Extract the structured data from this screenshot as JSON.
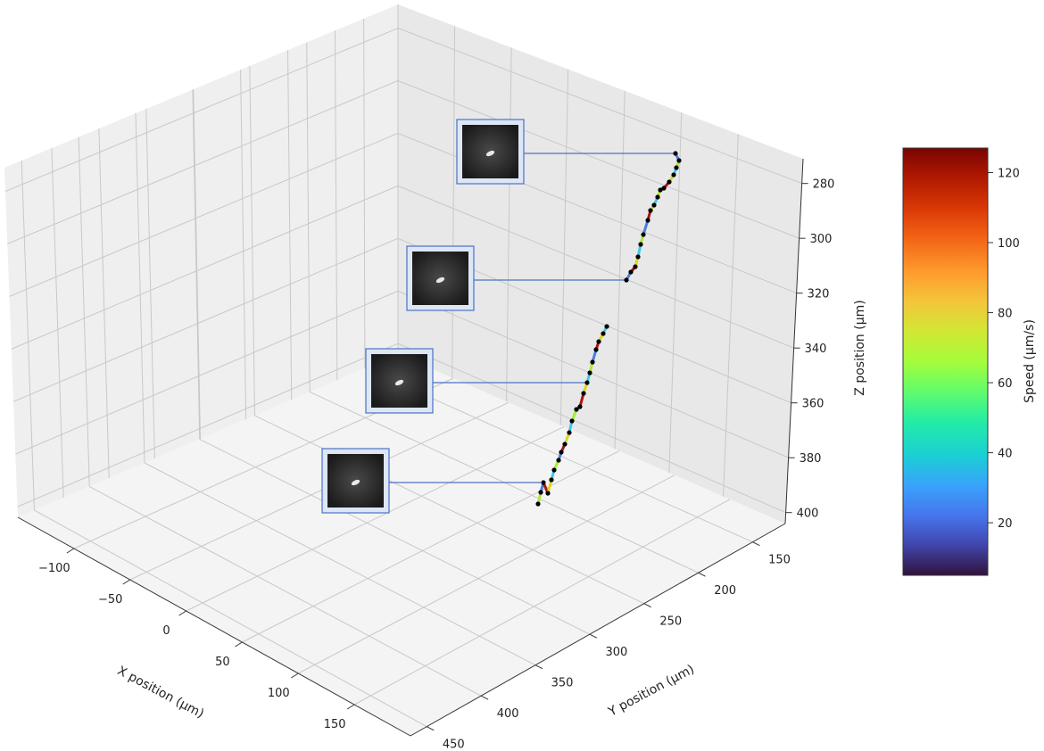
{
  "chart_data": {
    "type": "scatter",
    "projection": "3d",
    "xlabel": "X position (µm)",
    "ylabel": "Y position (µm)",
    "zlabel": "Z position (µm)",
    "xticks": [
      -100,
      -50,
      0,
      50,
      100,
      150
    ],
    "yticks": [
      150,
      200,
      250,
      300,
      350,
      400,
      450
    ],
    "zticks": [
      280,
      300,
      320,
      340,
      360,
      380,
      400
    ],
    "z_axis_inverted": true,
    "grid": true,
    "colorbar": {
      "label": "Speed (µm/s)",
      "ticks": [
        20,
        40,
        60,
        80,
        100,
        120
      ],
      "range": [
        5,
        127
      ],
      "colormap": "turbo"
    },
    "trajectory": {
      "point_color": "#000000",
      "segment_colors": [
        "#a8ec2e",
        "#4a7ee0",
        "#b01010",
        "#d8d820",
        "#3cc8e8"
      ]
    },
    "inset_images": {
      "count": 4,
      "description_free": true,
      "border_color": "#4b72c6",
      "fill_color": "#dde6f5"
    }
  }
}
